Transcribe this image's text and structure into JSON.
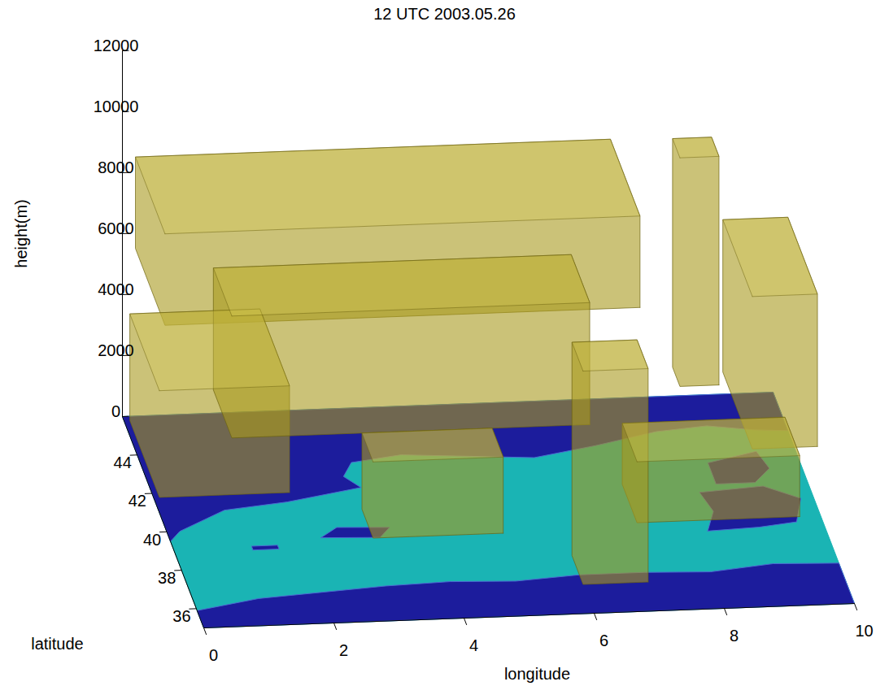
{
  "chart_data": {
    "type": "isosurface3d",
    "title": "12 UTC 2003.05.26",
    "xlabel": "longitude",
    "ylabel": "latitude",
    "zlabel": "height(m)",
    "xlim": [
      0,
      10
    ],
    "ylim": [
      35,
      46
    ],
    "zlim": [
      0,
      12000
    ],
    "xticks": [
      0,
      2,
      4,
      6,
      8,
      10
    ],
    "yticks": [
      36,
      38,
      40,
      42,
      44
    ],
    "zticks": [
      0,
      2000,
      4000,
      6000,
      8000,
      10000,
      12000
    ],
    "floor": {
      "color": "#1ab4b4"
    },
    "terrain": {
      "color": "#1c1c9c",
      "polygons": [
        [
          [
            0,
            35
          ],
          [
            0,
            35.9
          ],
          [
            1,
            36.4
          ],
          [
            2,
            36.6
          ],
          [
            3,
            36.8
          ],
          [
            4,
            36.9
          ],
          [
            5,
            36.8
          ],
          [
            6,
            37.0
          ],
          [
            7,
            37.0
          ],
          [
            8,
            36.9
          ],
          [
            9,
            37.2
          ],
          [
            10,
            37.1
          ],
          [
            10,
            35
          ]
        ],
        [
          [
            0,
            46
          ],
          [
            0,
            39.5
          ],
          [
            0.2,
            40
          ],
          [
            1,
            41
          ],
          [
            2,
            41.3
          ],
          [
            3.2,
            41.9
          ],
          [
            3,
            42.5
          ],
          [
            3.2,
            43.2
          ],
          [
            4,
            43.5
          ],
          [
            5,
            43.3
          ],
          [
            6,
            43.1
          ],
          [
            7,
            43.6
          ],
          [
            8,
            44.2
          ],
          [
            8.8,
            44.4
          ],
          [
            9.5,
            44.1
          ],
          [
            10,
            44
          ],
          [
            10,
            46
          ]
        ],
        [
          [
            8.6,
            41.4
          ],
          [
            9.2,
            41.4
          ],
          [
            9.5,
            42.1
          ],
          [
            9.4,
            43
          ],
          [
            8.6,
            42.5
          ]
        ],
        [
          [
            8.2,
            39
          ],
          [
            9,
            39.1
          ],
          [
            9.6,
            39.3
          ],
          [
            9.8,
            40.5
          ],
          [
            9.3,
            41.2
          ],
          [
            8.3,
            41
          ],
          [
            8.4,
            40
          ]
        ],
        [
          [
            2.3,
            39.4
          ],
          [
            3.2,
            39.3
          ],
          [
            3.4,
            39.8
          ],
          [
            2.6,
            39.9
          ]
        ],
        [
          [
            1.2,
            38.9
          ],
          [
            1.6,
            38.9
          ],
          [
            1.6,
            39.1
          ],
          [
            1.2,
            39.1
          ]
        ]
      ]
    },
    "isosurfaces": {
      "color": "#a89a1e",
      "boxes": [
        {
          "lon": [
            0.2,
            7.5
          ],
          "lat": [
            42,
            46
          ],
          "height": [
            5500,
            8500
          ]
        },
        {
          "lon": [
            0,
            2
          ],
          "lat": [
            41,
            45
          ],
          "height": [
            500,
            4000
          ]
        },
        {
          "lon": [
            9,
            10
          ],
          "lat": [
            40,
            44
          ],
          "height": [
            2000,
            7000
          ]
        },
        {
          "lon": [
            8,
            8.6
          ],
          "lat": [
            41,
            42
          ],
          "height": [
            3500,
            11000
          ]
        },
        {
          "lon": [
            1,
            6.5
          ],
          "lat": [
            40,
            42.5
          ],
          "height": [
            3000,
            7000
          ]
        },
        {
          "lon": [
            3,
            5
          ],
          "lat": [
            38.5,
            40
          ],
          "height": [
            500,
            3000
          ]
        },
        {
          "lon": [
            7,
            9.5
          ],
          "lat": [
            38,
            40
          ],
          "height": [
            1000,
            3000
          ]
        },
        {
          "lon": [
            6,
            7
          ],
          "lat": [
            36.5,
            38
          ],
          "height": [
            0,
            7000
          ]
        }
      ]
    }
  }
}
